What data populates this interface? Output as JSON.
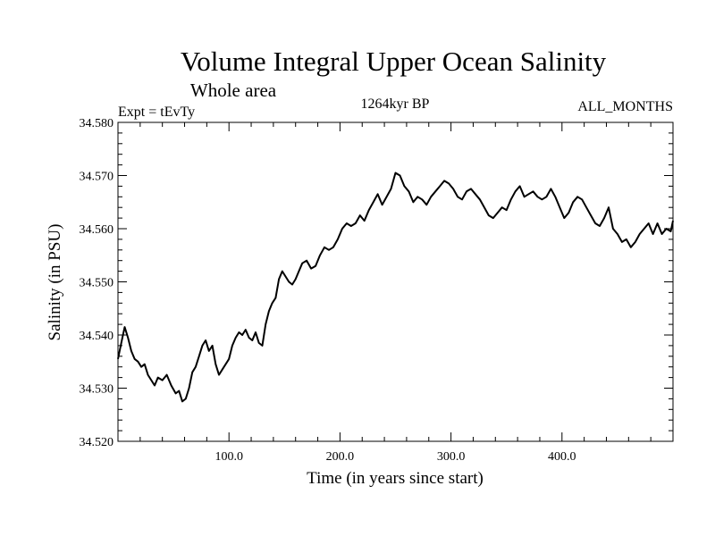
{
  "chart_data": {
    "type": "line",
    "title": "Volume Integral Upper Ocean Salinity",
    "subtitle": "Whole area",
    "left_label": "Expt = tEvTy",
    "center_label": "1264kyr BP",
    "right_label": "ALL_MONTHS",
    "xlabel": "Time (in years since start)",
    "ylabel": "Salinity (in PSU)",
    "xlim": [
      0,
      500
    ],
    "ylim": [
      34.52,
      34.58
    ],
    "x_ticks": [
      100,
      200,
      300,
      400
    ],
    "x_tick_labels": [
      "100.0",
      "200.0",
      "300.0",
      "400.0"
    ],
    "y_ticks": [
      34.52,
      34.53,
      34.54,
      34.55,
      34.56,
      34.57,
      34.58
    ],
    "y_tick_labels": [
      "34.520",
      "34.530",
      "34.540",
      "34.550",
      "34.560",
      "34.570",
      "34.580"
    ],
    "grid": false,
    "series": [
      {
        "name": "salinity",
        "color": "#000000",
        "x": [
          0,
          3,
          6,
          9,
          12,
          15,
          18,
          21,
          24,
          27,
          30,
          33,
          36,
          40,
          44,
          48,
          52,
          55,
          58,
          61,
          64,
          67,
          70,
          73,
          76,
          79,
          82,
          85,
          88,
          91,
          94,
          97,
          100,
          103,
          106,
          109,
          112,
          115,
          118,
          121,
          124,
          127,
          130,
          133,
          136,
          139,
          142,
          145,
          148,
          151,
          154,
          157,
          160,
          163,
          166,
          170,
          174,
          178,
          182,
          186,
          190,
          194,
          198,
          202,
          206,
          210,
          214,
          218,
          222,
          226,
          230,
          234,
          238,
          242,
          246,
          250,
          254,
          258,
          262,
          266,
          270,
          274,
          278,
          282,
          286,
          290,
          294,
          298,
          302,
          306,
          310,
          314,
          318,
          322,
          326,
          330,
          334,
          338,
          342,
          346,
          350,
          354,
          358,
          362,
          366,
          370,
          374,
          378,
          382,
          386,
          390,
          394,
          398,
          402,
          406,
          410,
          414,
          418,
          422,
          426,
          430,
          434,
          438,
          442,
          446,
          450,
          454,
          458,
          462,
          466,
          470,
          474,
          478,
          482,
          486,
          490,
          494,
          498,
          500
        ],
        "values": [
          34.5355,
          34.5385,
          34.5415,
          34.5395,
          34.537,
          34.5355,
          34.535,
          34.534,
          34.5345,
          34.5325,
          34.5315,
          34.5305,
          34.532,
          34.5315,
          34.5325,
          34.5305,
          34.529,
          34.5295,
          34.5275,
          34.528,
          34.53,
          34.533,
          34.534,
          34.536,
          34.538,
          34.539,
          34.537,
          34.538,
          34.5345,
          34.5325,
          34.5335,
          34.5345,
          34.5355,
          34.538,
          34.5395,
          34.5405,
          34.54,
          34.541,
          34.5395,
          34.539,
          34.5405,
          34.5385,
          34.538,
          34.542,
          34.5445,
          34.546,
          34.547,
          34.5505,
          34.552,
          34.551,
          34.55,
          34.5495,
          34.5505,
          34.552,
          34.5535,
          34.554,
          34.5525,
          34.553,
          34.555,
          34.5565,
          34.556,
          34.5565,
          34.558,
          34.56,
          34.561,
          34.5605,
          34.561,
          34.5625,
          34.5615,
          34.5635,
          34.565,
          34.5665,
          34.5645,
          34.566,
          34.5675,
          34.5705,
          34.57,
          34.568,
          34.567,
          34.565,
          34.566,
          34.5655,
          34.5645,
          34.566,
          34.567,
          34.568,
          34.569,
          34.5685,
          34.5675,
          34.566,
          34.5655,
          34.567,
          34.5675,
          34.5665,
          34.5655,
          34.564,
          34.5625,
          34.562,
          34.563,
          34.564,
          34.5635,
          34.5655,
          34.567,
          34.568,
          34.566,
          34.5665,
          34.567,
          34.566,
          34.5655,
          34.566,
          34.5675,
          34.566,
          34.564,
          34.562,
          34.563,
          34.565,
          34.566,
          34.5655,
          34.564,
          34.5625,
          34.561,
          34.5605,
          34.562,
          34.564,
          34.56,
          34.559,
          34.5575,
          34.558,
          34.5565,
          34.5575,
          34.559,
          34.56,
          34.561,
          34.559,
          34.561,
          34.559,
          34.56,
          34.5595,
          34.5615
        ]
      }
    ]
  }
}
